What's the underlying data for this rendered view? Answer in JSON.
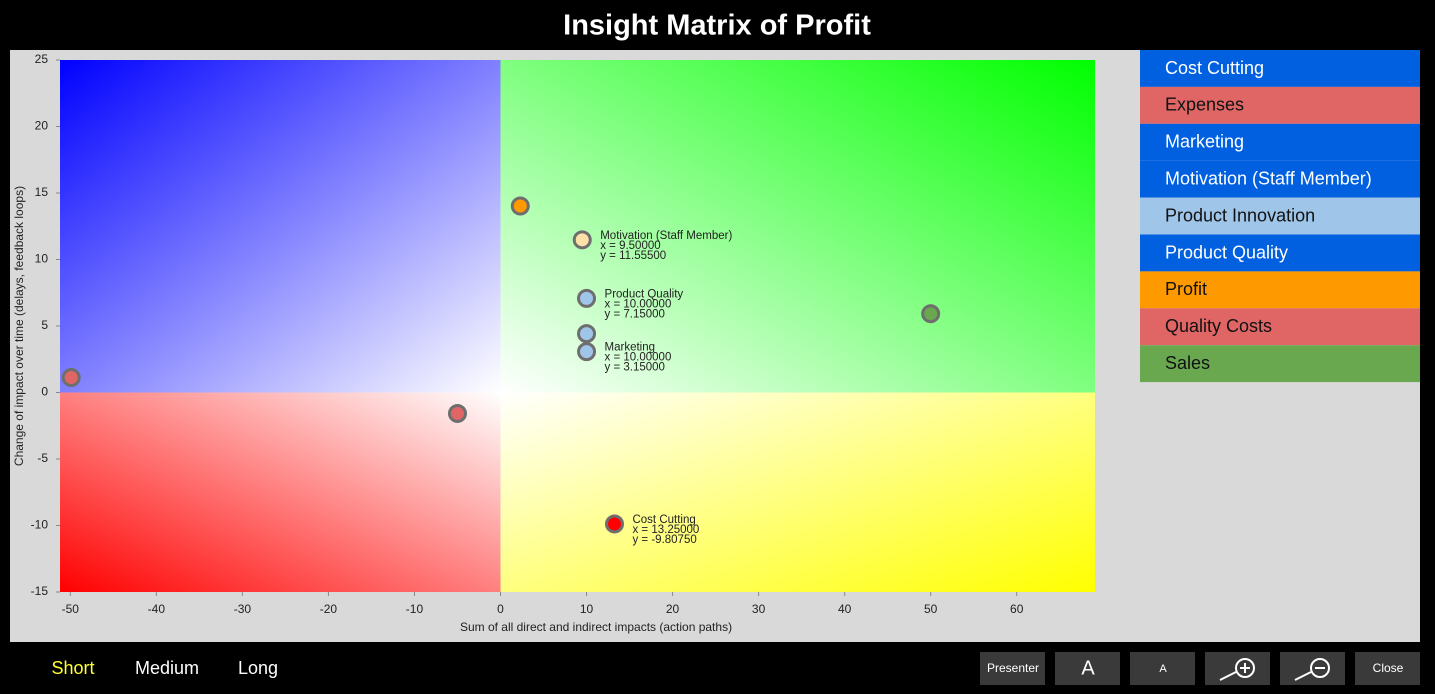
{
  "chart_data": {
    "type": "scatter",
    "title": "Insight Matrix of Profit",
    "x_label": "Sum of all direct and indirect impacts (action paths)",
    "y_label": "Change of impact over time (delays, feedback loops)",
    "xlim": [
      -51.2,
      69.1
    ],
    "ylim": [
      -15,
      25
    ],
    "xticks": [
      -50,
      -40,
      -30,
      -20,
      -10,
      0,
      10,
      20,
      30,
      40,
      50,
      60
    ],
    "yticks": [
      -15,
      -10,
      -5,
      0,
      5,
      10,
      15,
      20,
      25
    ],
    "quadrant_colors": [
      "#0000ff",
      "#00ff00",
      "#ff0000",
      "#ffff00"
    ],
    "series": [
      {
        "name": "Cost Cutting",
        "color": "#0060e0",
        "point_color": "#ff0000",
        "x": [
          13.25
        ],
        "values": [
          -9.8075
        ],
        "x_labels": [
          "x = 13.25000"
        ],
        "value_labels": [
          "y = -9.80750"
        ]
      },
      {
        "name": "Expenses",
        "color": "#e06666",
        "point_color": "#e06666",
        "x": [
          -49.9
        ],
        "values": [
          1.2
        ]
      },
      {
        "name": "Marketing",
        "color": "#0060e0",
        "point_color": "#9fc5e8",
        "x": [
          10
        ],
        "values": [
          3.15
        ],
        "x_labels": [
          "x = 10.00000"
        ],
        "value_labels": [
          "y = 3.15000"
        ]
      },
      {
        "name": "Motivation (Staff Member)",
        "color": "#0060e0",
        "point_color": "#ffe0a8",
        "x": [
          9.5
        ],
        "values": [
          11.555
        ],
        "x_labels": [
          "x = 9.50000"
        ],
        "value_labels": [
          "y = 11.55500"
        ]
      },
      {
        "name": "Product Innovation",
        "color": "#9fc5e8",
        "point_color": "#9fc5e8",
        "x": [
          10
        ],
        "values": [
          4.5
        ]
      },
      {
        "name": "Product Quality",
        "color": "#0060e0",
        "point_color": "#9fc5e8",
        "x": [
          10
        ],
        "values": [
          7.15
        ],
        "x_labels": [
          "x = 10.00000"
        ],
        "value_labels": [
          "y = 7.15000"
        ]
      },
      {
        "name": "Profit",
        "color": "#ff9900",
        "point_color": "#ff9900",
        "x": [
          2.3
        ],
        "values": [
          14.1
        ]
      },
      {
        "name": "Quality Costs",
        "color": "#e06666",
        "point_color": "#e06666",
        "x": [
          -5
        ],
        "values": [
          -1.5
        ]
      },
      {
        "name": "Sales",
        "color": "#6aa84f",
        "point_color": "#6aa84f",
        "x": [
          50
        ],
        "values": [
          6
        ]
      }
    ]
  },
  "toolbar": {
    "horizons": [
      "Short",
      "Medium",
      "Long"
    ],
    "buttons": [
      "Presenter",
      "A",
      "A",
      "Close"
    ]
  }
}
